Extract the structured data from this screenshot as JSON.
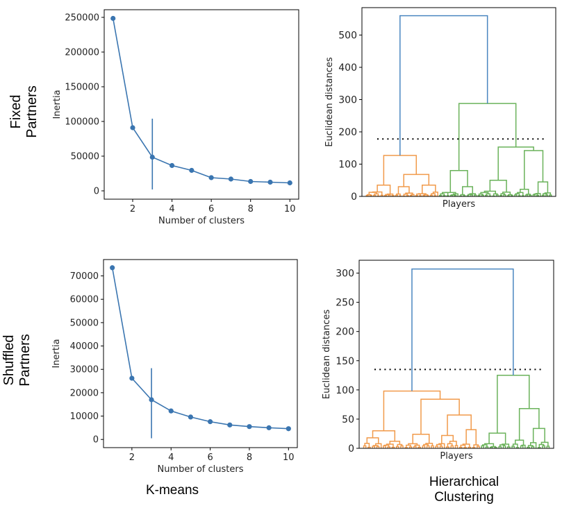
{
  "row_labels": {
    "top": [
      "Fixed",
      "Partners"
    ],
    "bottom": [
      "Shuffled",
      "Partners"
    ]
  },
  "column_labels": {
    "left": [
      "K-means"
    ],
    "right": [
      "Hierarchical",
      "Clustering"
    ]
  },
  "colors": {
    "kmeans_line": "#3a75b0",
    "dendro_top": "#4a86c0",
    "cluster_orange": "#f19a4a",
    "cluster_green": "#6ab25a",
    "cut_line": "#000000"
  },
  "chart_data": [
    {
      "id": "kmeans-fixed",
      "type": "line",
      "title": "",
      "xlabel": "Number of clusters",
      "ylabel": "Inertia",
      "x": [
        1,
        2,
        3,
        4,
        5,
        6,
        7,
        8,
        9,
        10
      ],
      "y": [
        248500,
        91000,
        48500,
        36500,
        29500,
        19000,
        17000,
        13500,
        12500,
        11500
      ],
      "xlim": [
        0.55,
        10.45
      ],
      "ylim": [
        -12000,
        261000
      ],
      "xticks": [
        2,
        4,
        6,
        8,
        10
      ],
      "yticks": [
        0,
        50000,
        100000,
        150000,
        200000,
        250000
      ],
      "elbow": {
        "x": 3,
        "y_range": [
          2000,
          104000
        ]
      }
    },
    {
      "id": "dendrogram-fixed",
      "type": "dendrogram",
      "xlabel": "Players",
      "ylabel": "Euclidean distances",
      "ylim": [
        0,
        585
      ],
      "yticks": [
        0,
        100,
        200,
        300,
        400,
        500
      ],
      "root_height": 560,
      "cut_height": 178,
      "clusters": [
        {
          "name": "orange",
          "height": 127,
          "children": [
            {
              "height": 35,
              "children": [
                10,
                6
              ]
            },
            {
              "height": 68,
              "children": [
                {
                  "height": 30,
                  "children": [
                    4,
                    7
                  ]
                },
                {
                  "height": 35,
                  "children": [
                    8,
                    5
                  ]
                }
              ]
            }
          ]
        },
        {
          "name": "green",
          "height": 288,
          "children": [
            {
              "height": 80,
              "children": [
                {
                  "height": 8,
                  "children": [
                    6,
                    5
                  ]
                },
                {
                  "height": 30,
                  "children": [
                    4,
                    6
                  ]
                }
              ]
            },
            {
              "height": 153,
              "children": [
                {
                  "height": 50,
                  "children": [
                    12,
                    8
                  ]
                },
                {
                  "height": 142,
                  "children": [
                    {
                      "height": 22,
                      "children": [
                        6,
                        4
                      ]
                    },
                    {
                      "height": 45,
                      "children": [
                        5,
                        6
                      ]
                    }
                  ]
                }
              ]
            }
          ]
        }
      ]
    },
    {
      "id": "kmeans-shuffled",
      "type": "line",
      "title": "",
      "xlabel": "Number of clusters",
      "ylabel": "Inertia",
      "x": [
        1,
        2,
        3,
        4,
        5,
        6,
        7,
        8,
        9,
        10
      ],
      "y": [
        73500,
        26200,
        17000,
        12200,
        9600,
        7600,
        6200,
        5500,
        5000,
        4600
      ],
      "xlim": [
        0.55,
        10.45
      ],
      "ylim": [
        -3500,
        77000
      ],
      "xticks": [
        2,
        4,
        6,
        8,
        10
      ],
      "yticks": [
        0,
        10000,
        20000,
        30000,
        40000,
        50000,
        60000,
        70000
      ],
      "elbow": {
        "x": 3,
        "y_range": [
          500,
          30500
        ]
      }
    },
    {
      "id": "dendrogram-shuffled",
      "type": "dendrogram",
      "xlabel": "Players",
      "ylabel": "Euclidean distances",
      "ylim": [
        0,
        322
      ],
      "yticks": [
        0,
        50,
        100,
        150,
        200,
        250,
        300
      ],
      "root_height": 307,
      "cut_height": 135,
      "clusters": [
        {
          "name": "orange",
          "height": 98,
          "children": [
            {
              "height": 30,
              "children": [
                {
                  "height": 18,
                  "children": [
                    4,
                    5
                  ]
                },
                {
                  "height": 12,
                  "children": [
                    6,
                    4
                  ]
                }
              ]
            },
            {
              "height": 84,
              "children": [
                {
                  "height": 24,
                  "children": [
                    8,
                    6
                  ]
                },
                {
                  "height": 57,
                  "children": [
                    {
                      "height": 22,
                      "children": [
                        5,
                        6
                      ]
                    },
                    {
                      "height": 32,
                      "children": [
                        6,
                        4
                      ]
                    }
                  ]
                }
              ]
            }
          ]
        },
        {
          "name": "green",
          "height": 125,
          "children": [
            {
              "height": 26,
              "children": [
                8,
                6
              ]
            },
            {
              "height": 68,
              "children": [
                {
                  "height": 14,
                  "children": [
                    4,
                    3
                  ]
                },
                {
                  "height": 34,
                  "children": [
                    5,
                    6
                  ]
                }
              ]
            }
          ]
        }
      ]
    }
  ]
}
